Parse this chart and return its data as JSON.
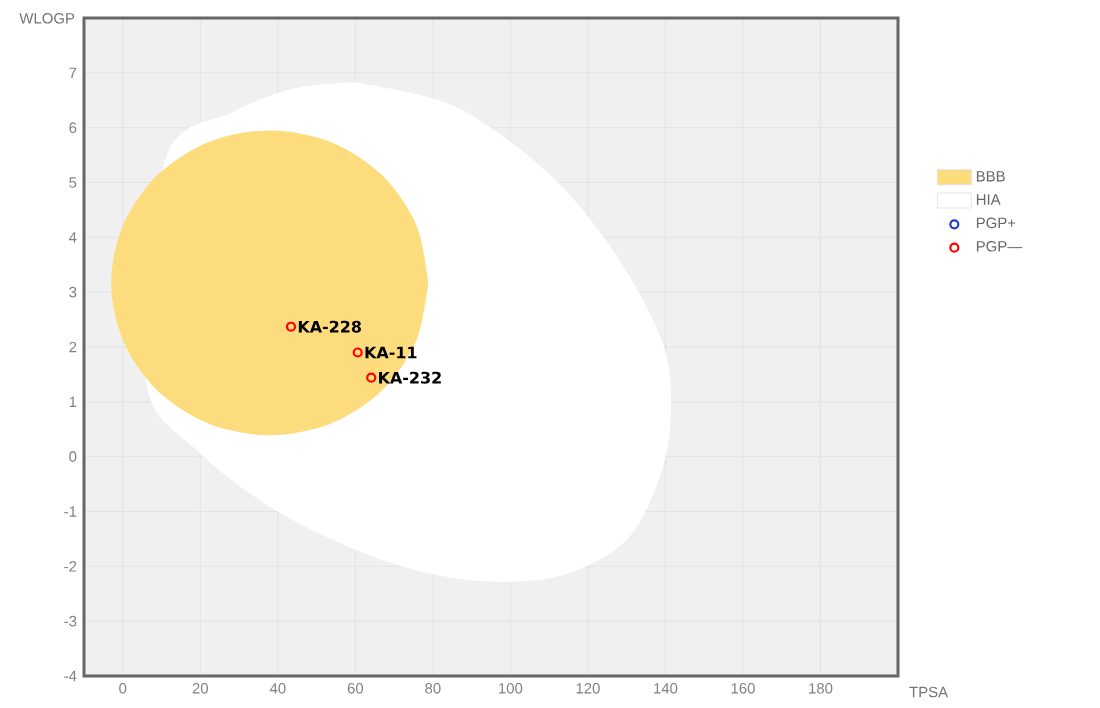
{
  "chart_data": {
    "type": "scatter",
    "xlabel": "TPSA",
    "ylabel": "WLOGP",
    "xlim": [
      -10,
      200
    ],
    "ylim": [
      -4,
      8
    ],
    "xticks": [
      0,
      20,
      40,
      60,
      80,
      100,
      120,
      140,
      160,
      180
    ],
    "yticks": [
      -4,
      -3,
      -2,
      -1,
      0,
      1,
      2,
      3,
      4,
      5,
      6,
      7
    ],
    "grid": true,
    "legend": "right",
    "series": [
      {
        "name": "BBB",
        "type": "area",
        "color": "#fddc7e",
        "x": [
          78.8,
          75.7,
          66.8,
          53.6,
          37.9,
          22.2,
          9.0,
          0.1,
          -3.0,
          0.1,
          9.0,
          22.2,
          37.9,
          53.6,
          66.8,
          75.7
        ],
        "values": [
          3.17,
          4.23,
          5.14,
          5.74,
          5.95,
          5.74,
          5.14,
          4.23,
          3.17,
          2.11,
          1.2,
          0.6,
          0.39,
          0.6,
          1.2,
          2.11
        ]
      },
      {
        "name": "HIA",
        "type": "area",
        "color": "#ffffff",
        "x": [
          59.4,
          85.3,
          109.5,
          126.8,
          138.9,
          141.5,
          138.9,
          130.2,
          113.0,
          90.5,
          66.3,
          40.4,
          19.7,
          5.9,
          null,
          11.0,
          28.3,
          43.9
        ],
        "values": [
          6.83,
          6.4,
          5.19,
          3.73,
          2.15,
          0.93,
          -0.29,
          -1.5,
          -2.17,
          -2.26,
          -1.87,
          -1.02,
          0.08,
          1.42,
          null,
          5.43,
          6.28,
          6.71
        ]
      },
      {
        "name": "PGP+",
        "color": "#1f3fbf",
        "marker": "circle"
      },
      {
        "name": "PGP—",
        "color": "#ff0000",
        "marker": "circle",
        "x": [
          43.4,
          60.6,
          64.1
        ],
        "values": [
          2.37,
          1.9,
          1.44
        ]
      }
    ],
    "annotations": [
      {
        "text": "KA-228",
        "x": 43.4,
        "y": 2.37
      },
      {
        "text": "KA-11",
        "x": 60.6,
        "y": 1.9
      },
      {
        "text": "KA-232",
        "x": 64.1,
        "y": 1.44
      }
    ]
  }
}
